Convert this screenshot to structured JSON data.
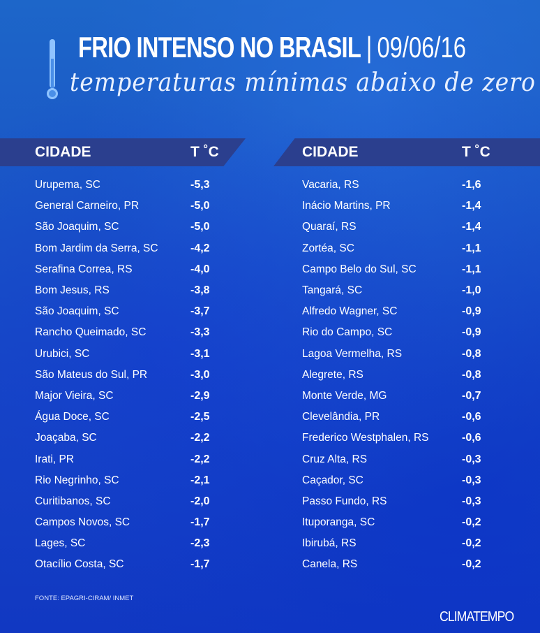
{
  "header": {
    "title": "FRIO INTENSO NO BRASIL",
    "separator": "|",
    "date": "09/06/16",
    "subtitle": "temperaturas mínimas abaixo de zero"
  },
  "table_headers": {
    "city": "CIDADE",
    "temp": "T ˚C"
  },
  "left_column": [
    {
      "city": "Urupema, SC",
      "temp": "-5,3"
    },
    {
      "city": "General Carneiro, PR",
      "temp": "-5,0"
    },
    {
      "city": "São Joaquim, SC",
      "temp": "-5,0"
    },
    {
      "city": "Bom Jardim da Serra, SC",
      "temp": "-4,2"
    },
    {
      "city": "Serafina Correa, RS",
      "temp": "-4,0"
    },
    {
      "city": "Bom Jesus, RS",
      "temp": "-3,8"
    },
    {
      "city": "São Joaquim, SC",
      "temp": "-3,7"
    },
    {
      "city": "Rancho Queimado, SC",
      "temp": "-3,3"
    },
    {
      "city": "Urubici, SC",
      "temp": "-3,1"
    },
    {
      "city": "São Mateus do Sul, PR",
      "temp": "-3,0"
    },
    {
      "city": "Major Vieira, SC",
      "temp": "-2,9"
    },
    {
      "city": "Água Doce, SC",
      "temp": "-2,5"
    },
    {
      "city": "Joaçaba, SC",
      "temp": "-2,2"
    },
    {
      "city": "Irati, PR",
      "temp": "-2,2"
    },
    {
      "city": "Rio Negrinho, SC",
      "temp": "-2,1"
    },
    {
      "city": "Curitibanos, SC",
      "temp": "-2,0"
    },
    {
      "city": "Campos Novos, SC",
      "temp": "-1,7"
    },
    {
      "city": "Lages, SC",
      "temp": "-2,3"
    },
    {
      "city": "Otacílio Costa, SC",
      "temp": "-1,7"
    }
  ],
  "right_column": [
    {
      "city": "Vacaria, RS",
      "temp": "-1,6"
    },
    {
      "city": "Inácio Martins, PR",
      "temp": "-1,4"
    },
    {
      "city": "Quaraí, RS",
      "temp": "-1,4"
    },
    {
      "city": "Zortéa, SC",
      "temp": "-1,1"
    },
    {
      "city": "Campo Belo do Sul, SC",
      "temp": "-1,1"
    },
    {
      "city": "Tangará, SC",
      "temp": "-1,0"
    },
    {
      "city": "Alfredo Wagner, SC",
      "temp": "-0,9"
    },
    {
      "city": "Rio do Campo, SC",
      "temp": "-0,9"
    },
    {
      "city": "Lagoa Vermelha, RS",
      "temp": "-0,8"
    },
    {
      "city": "Alegrete, RS",
      "temp": "-0,8"
    },
    {
      "city": "Monte Verde, MG",
      "temp": "-0,7"
    },
    {
      "city": "Clevelândia, PR",
      "temp": "-0,6"
    },
    {
      "city": "Frederico Westphalen, RS",
      "temp": "-0,6"
    },
    {
      "city": "Cruz Alta, RS",
      "temp": "-0,3"
    },
    {
      "city": "Caçador, SC",
      "temp": "-0,3"
    },
    {
      "city": "Passo Fundo, RS",
      "temp": "-0,3"
    },
    {
      "city": "Ituporanga, SC",
      "temp": "-0,2"
    },
    {
      "city": "Ibirubá, RS",
      "temp": "-0,2"
    },
    {
      "city": "Canela, RS",
      "temp": "-0,2"
    }
  ],
  "footer": {
    "source": "FONTE: EPAGRI-CIRAM/ INMET",
    "brand": "CLIMATEMPO"
  },
  "colors": {
    "background_top": "#1d66c9",
    "background_bottom": "#1138c2",
    "header_band": "#2b3f8e",
    "text": "#ffffff"
  },
  "icons": {
    "thermometer": "thermometer-icon"
  }
}
